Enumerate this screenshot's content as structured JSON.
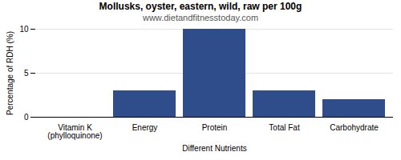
{
  "chart_data": {
    "type": "bar",
    "title": "Mollusks, oyster, eastern, wild, raw per 100g",
    "subtitle": "www.dietandfitnesstoday.com",
    "xlabel": "Different Nutrients",
    "ylabel": "Percentage of RDH (%)",
    "categories": [
      "Vitamin K (phylloquinone)",
      "Energy",
      "Protein",
      "Total Fat",
      "Carbohydrate"
    ],
    "values": [
      0,
      3.0,
      10.0,
      3.0,
      2.0
    ],
    "color": "#2e4d8a",
    "ylim": [
      0,
      10
    ],
    "yticks": [
      0,
      5,
      10
    ],
    "grid": true
  }
}
